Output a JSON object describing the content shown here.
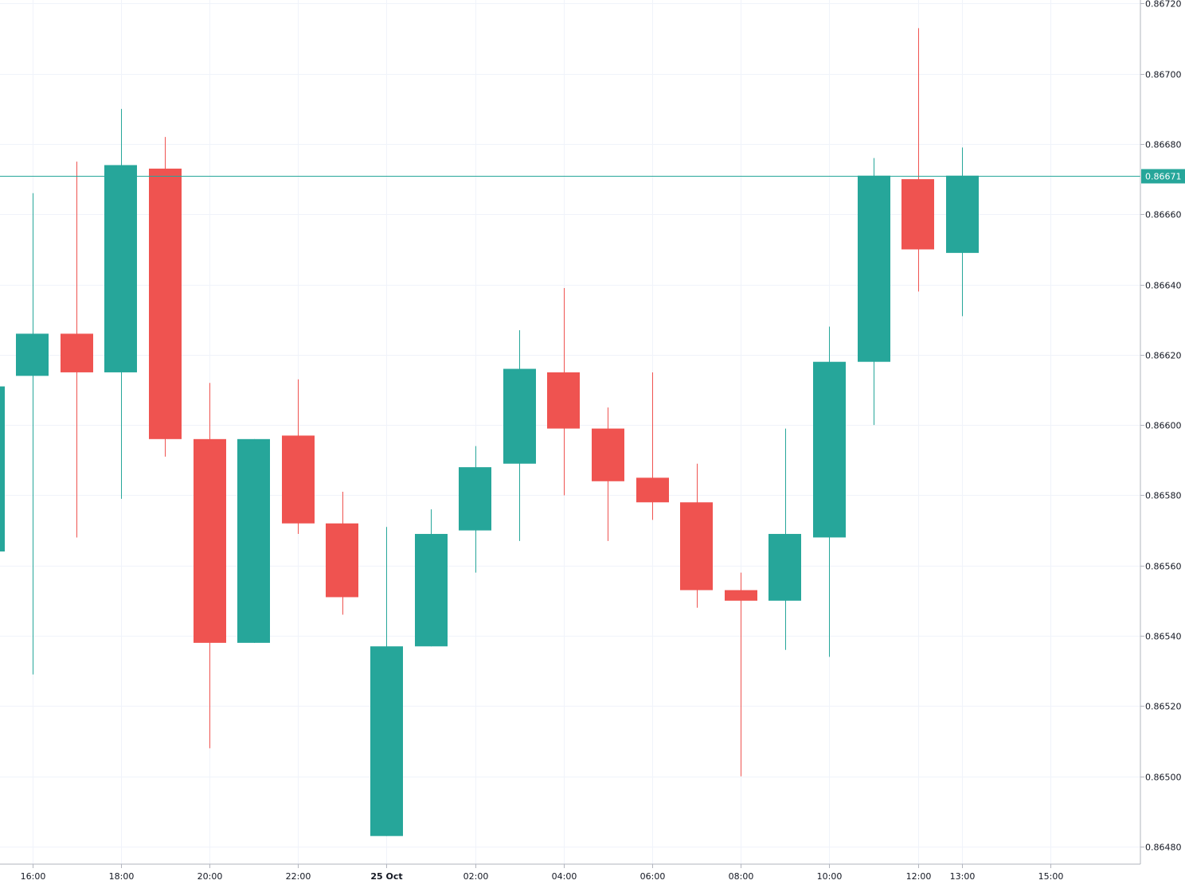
{
  "chart_data": {
    "type": "candlestick",
    "title": "",
    "xlabel": "",
    "ylabel": "",
    "ylim": [
      0.86475,
      0.86721
    ],
    "y_ticks": [
      "0.86480",
      "0.86500",
      "0.86520",
      "0.86540",
      "0.86560",
      "0.86580",
      "0.86600",
      "0.86620",
      "0.86640",
      "0.86660",
      "0.86680",
      "0.86700",
      "0.86720"
    ],
    "x_ticks": [
      {
        "label": "16:00",
        "time": "24 Oct 16:00",
        "bold": false
      },
      {
        "label": "18:00",
        "time": "24 Oct 18:00",
        "bold": false
      },
      {
        "label": "20:00",
        "time": "24 Oct 20:00",
        "bold": false
      },
      {
        "label": "22:00",
        "time": "24 Oct 22:00",
        "bold": false
      },
      {
        "label": "25 Oct",
        "time": "25 Oct 00:00",
        "bold": true
      },
      {
        "label": "02:00",
        "time": "25 Oct 02:00",
        "bold": false
      },
      {
        "label": "04:00",
        "time": "25 Oct 04:00",
        "bold": false
      },
      {
        "label": "06:00",
        "time": "25 Oct 06:00",
        "bold": false
      },
      {
        "label": "08:00",
        "time": "25 Oct 08:00",
        "bold": false
      },
      {
        "label": "10:00",
        "time": "25 Oct 10:00",
        "bold": false
      },
      {
        "label": "12:00",
        "time": "25 Oct 12:00",
        "bold": false
      },
      {
        "label": "13:00",
        "time": "25 Oct 13:00",
        "bold": false
      },
      {
        "label": "15:00",
        "time": "25 Oct 15:00",
        "bold": false
      }
    ],
    "candles": [
      {
        "time": "24 Oct 15:00",
        "open": 0.86564,
        "high": 0.86612,
        "low": 0.86564,
        "close": 0.86611
      },
      {
        "time": "24 Oct 16:00",
        "open": 0.86614,
        "high": 0.86666,
        "low": 0.86529,
        "close": 0.86626
      },
      {
        "time": "24 Oct 17:00",
        "open": 0.86626,
        "high": 0.86675,
        "low": 0.86568,
        "close": 0.86615
      },
      {
        "time": "24 Oct 18:00",
        "open": 0.86615,
        "high": 0.8669,
        "low": 0.86579,
        "close": 0.86674
      },
      {
        "time": "24 Oct 19:00",
        "open": 0.86673,
        "high": 0.86682,
        "low": 0.86591,
        "close": 0.86596
      },
      {
        "time": "24 Oct 20:00",
        "open": 0.86596,
        "high": 0.86612,
        "low": 0.86508,
        "close": 0.86538
      },
      {
        "time": "24 Oct 21:00",
        "open": 0.86538,
        "high": 0.86596,
        "low": 0.86538,
        "close": 0.86596
      },
      {
        "time": "24 Oct 22:00",
        "open": 0.86597,
        "high": 0.86613,
        "low": 0.86569,
        "close": 0.86572
      },
      {
        "time": "24 Oct 23:00",
        "open": 0.86572,
        "high": 0.86581,
        "low": 0.86546,
        "close": 0.86551
      },
      {
        "time": "25 Oct 00:00",
        "open": 0.86483,
        "high": 0.86571,
        "low": 0.86483,
        "close": 0.86537
      },
      {
        "time": "25 Oct 01:00",
        "open": 0.86537,
        "high": 0.86576,
        "low": 0.86537,
        "close": 0.86569
      },
      {
        "time": "25 Oct 02:00",
        "open": 0.8657,
        "high": 0.86594,
        "low": 0.86558,
        "close": 0.86588
      },
      {
        "time": "25 Oct 03:00",
        "open": 0.86589,
        "high": 0.86627,
        "low": 0.86567,
        "close": 0.86616
      },
      {
        "time": "25 Oct 04:00",
        "open": 0.86615,
        "high": 0.86639,
        "low": 0.8658,
        "close": 0.86599
      },
      {
        "time": "25 Oct 05:00",
        "open": 0.86599,
        "high": 0.86605,
        "low": 0.86567,
        "close": 0.86584
      },
      {
        "time": "25 Oct 06:00",
        "open": 0.86585,
        "high": 0.86615,
        "low": 0.86573,
        "close": 0.86578
      },
      {
        "time": "25 Oct 07:00",
        "open": 0.86578,
        "high": 0.86589,
        "low": 0.86548,
        "close": 0.86553
      },
      {
        "time": "25 Oct 08:00",
        "open": 0.86553,
        "high": 0.86558,
        "low": 0.865,
        "close": 0.8655
      },
      {
        "time": "25 Oct 09:00",
        "open": 0.8655,
        "high": 0.86599,
        "low": 0.86536,
        "close": 0.86569
      },
      {
        "time": "25 Oct 10:00",
        "open": 0.86568,
        "high": 0.86628,
        "low": 0.86534,
        "close": 0.86618
      },
      {
        "time": "25 Oct 11:00",
        "open": 0.86618,
        "high": 0.86676,
        "low": 0.866,
        "close": 0.86671
      },
      {
        "time": "25 Oct 12:00",
        "open": 0.8667,
        "high": 0.86713,
        "low": 0.86638,
        "close": 0.8665
      },
      {
        "time": "25 Oct 13:00",
        "open": 0.86649,
        "high": 0.86679,
        "low": 0.86631,
        "close": 0.86671
      }
    ],
    "last_price": 0.86671,
    "last_price_label": "0.86671",
    "colors": {
      "up": "#26a69a",
      "down": "#ef5350",
      "last_price": "#26a69a",
      "grid": "#f0f3fa",
      "axis_text": "#131722",
      "axis_line": "#b2b5be"
    },
    "grid": true
  }
}
